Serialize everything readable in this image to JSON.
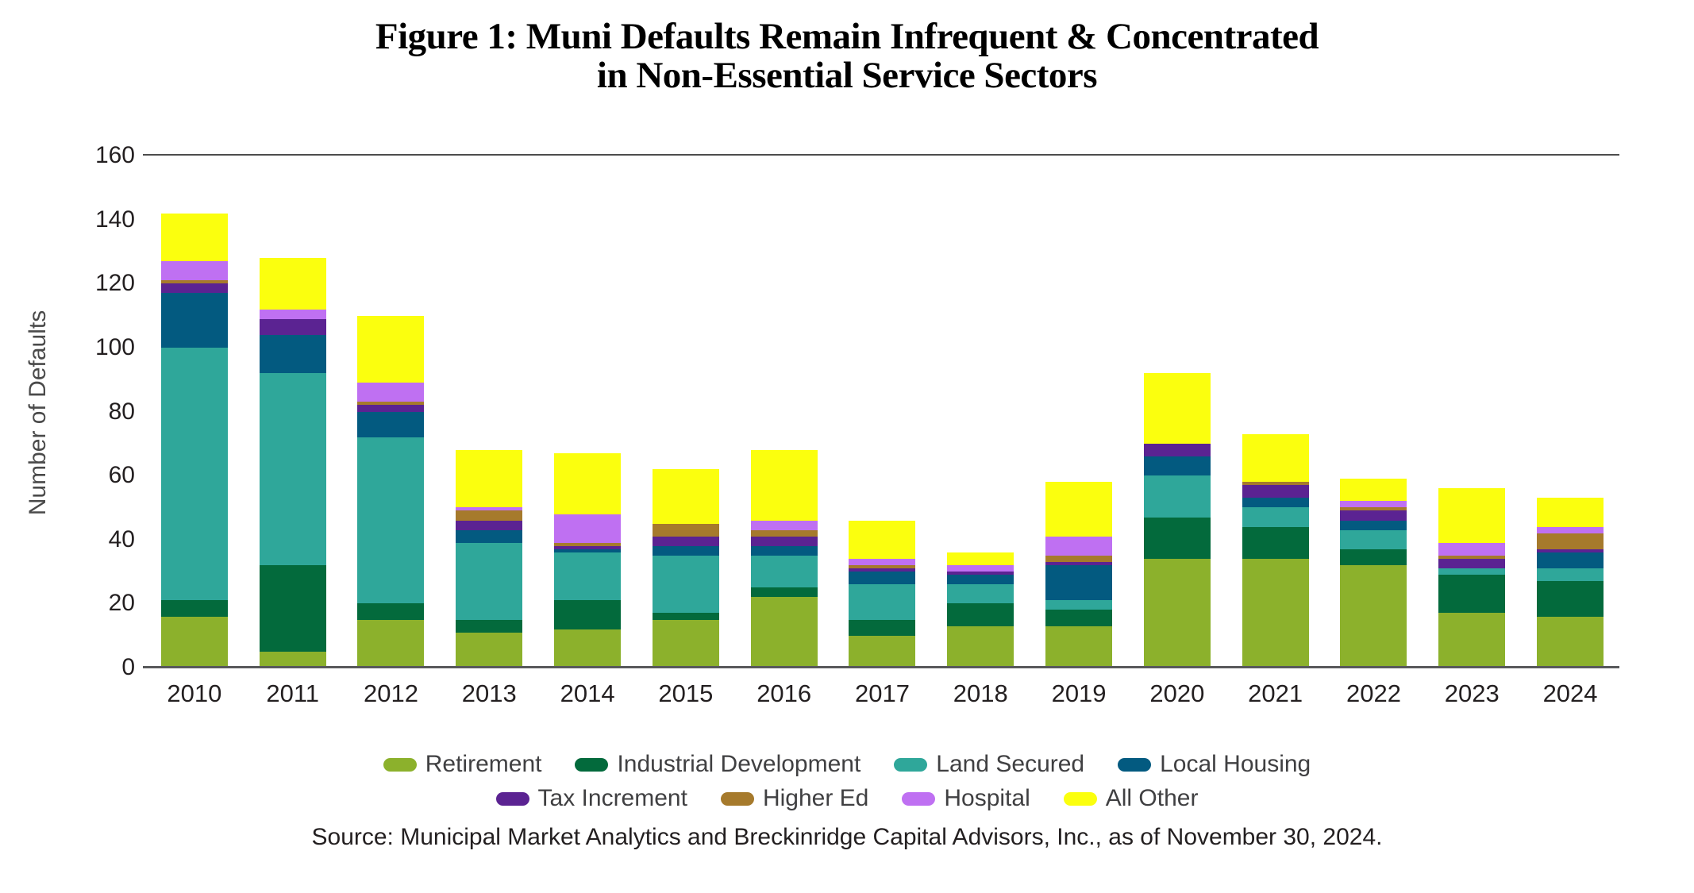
{
  "title": {
    "line1": "Figure 1: Muni Defaults Remain Infrequent & Concentrated",
    "line2": "in Non-Essential Service Sectors"
  },
  "y_axis": {
    "label": "Number of Defaults",
    "ticks": [
      0,
      20,
      40,
      60,
      80,
      100,
      120,
      140,
      160
    ]
  },
  "source": "Source: Municipal Market Analytics and Breckinridge Capital Advisors, Inc., as of November 30, 2024.",
  "chart_data": {
    "type": "bar",
    "stacked": true,
    "title": "Figure 1: Muni Defaults Remain Infrequent & Concentrated in Non-Essential Service Sectors",
    "xlabel": "",
    "ylabel": "Number of Defaults",
    "ylim": [
      0,
      160
    ],
    "grid": "top-line-only",
    "legend_position": "bottom",
    "categories": [
      "2010",
      "2011",
      "2012",
      "2013",
      "2014",
      "2015",
      "2016",
      "2017",
      "2018",
      "2019",
      "2020",
      "2021",
      "2022",
      "2023",
      "2024"
    ],
    "series": [
      {
        "name": "Retirement",
        "color": "#8CB12C",
        "values": [
          16,
          5,
          15,
          11,
          12,
          15,
          22,
          10,
          13,
          13,
          34,
          34,
          32,
          17,
          16
        ]
      },
      {
        "name": "Industrial Development",
        "color": "#036A3C",
        "values": [
          5,
          27,
          5,
          4,
          9,
          2,
          3,
          5,
          7,
          5,
          13,
          10,
          5,
          12,
          11
        ]
      },
      {
        "name": "Land Secured",
        "color": "#2FA79A",
        "values": [
          79,
          60,
          52,
          24,
          15,
          18,
          10,
          11,
          6,
          3,
          13,
          6,
          6,
          2,
          4
        ]
      },
      {
        "name": "Local Housing",
        "color": "#035A80",
        "values": [
          17,
          12,
          8,
          4,
          1,
          3,
          3,
          4,
          3,
          11,
          6,
          3,
          3,
          0,
          5
        ]
      },
      {
        "name": "Tax Increment",
        "color": "#5B2392",
        "values": [
          3,
          5,
          2,
          3,
          1,
          3,
          3,
          1,
          1,
          1,
          4,
          4,
          3,
          3,
          1
        ]
      },
      {
        "name": "Higher Ed",
        "color": "#A67A2C",
        "values": [
          1,
          0,
          1,
          3,
          1,
          4,
          2,
          1,
          0,
          2,
          0,
          1,
          1,
          1,
          5
        ]
      },
      {
        "name": "Hospital",
        "color": "#BF70F2",
        "values": [
          6,
          3,
          6,
          1,
          9,
          0,
          3,
          2,
          2,
          6,
          0,
          0,
          2,
          4,
          2
        ]
      },
      {
        "name": "All Other",
        "color": "#FBFF0E",
        "values": [
          15,
          16,
          21,
          18,
          19,
          17,
          22,
          12,
          4,
          17,
          22,
          15,
          7,
          17,
          9
        ]
      }
    ],
    "totals": [
      142,
      128,
      110,
      68,
      67,
      62,
      68,
      46,
      36,
      58,
      92,
      73,
      59,
      56,
      53
    ]
  }
}
